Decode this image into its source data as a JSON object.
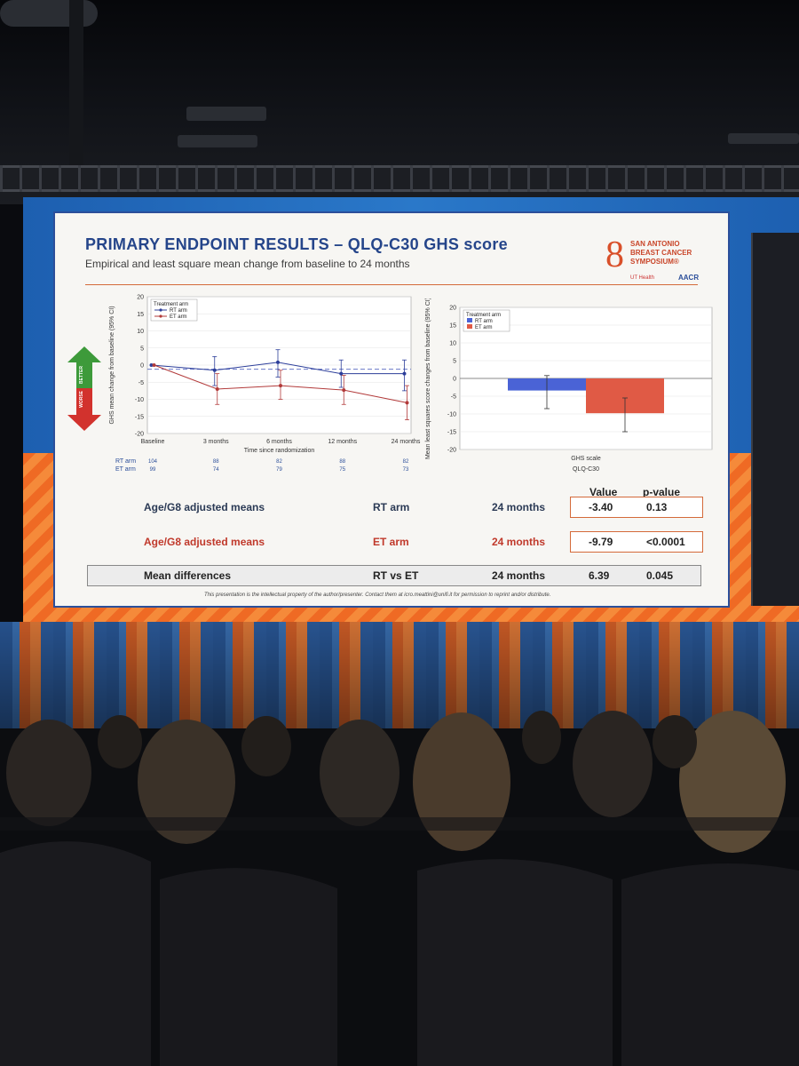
{
  "slide": {
    "title": "PRIMARY ENDPOINT RESULTS – QLQ-C30 GHS score",
    "subtitle": "Empirical and least square mean change from baseline to 24 months",
    "logo_lines": [
      "SAN ANTONIO",
      "BREAST CANCER",
      "SYMPOSIUM®"
    ],
    "logo_ut": "UT Health",
    "logo_aacr": "AACR",
    "arrow_better": "BETTER",
    "arrow_worse": "WORSE",
    "footer": "This presentation is the intellectual property of the author/presenter. Contact them at icro.meattini@unifi.it for permission to reprint and/or distribute."
  },
  "table": {
    "header_value": "Value",
    "header_p": "p-value",
    "rows": [
      {
        "label": "Age/G8 adjusted means",
        "arm": "RT arm",
        "time": "24 months",
        "value": "-3.40",
        "p": "0.13",
        "color": "#2b3a55"
      },
      {
        "label": "Age/G8 adjusted means",
        "arm": "ET arm",
        "time": "24 months",
        "value": "-9.79",
        "p": "<0.0001",
        "color": "#c0392b"
      },
      {
        "label": "Mean differences",
        "arm": "RT vs ET",
        "time": "24 months",
        "value": "6.39",
        "p": "0.045",
        "color": "#222222"
      }
    ]
  },
  "chart_data": [
    {
      "type": "line",
      "ylabel": "GHS mean change from baseline (95% CI)",
      "xlabel": "Time since randomization",
      "ylim": [
        -20,
        20
      ],
      "yticks": [
        20,
        15,
        10,
        5,
        0,
        -5,
        -10,
        -15,
        -20
      ],
      "categories": [
        "Baseline",
        "3 months",
        "6 months",
        "12 months",
        "24 months"
      ],
      "legend_title": "Treatment arm",
      "legend_position": "top-left",
      "series": [
        {
          "name": "RT arm",
          "color": "#2c3e9a",
          "values": [
            0,
            -1.5,
            0.8,
            -2.5,
            -2.5
          ],
          "ci_low": [
            0,
            -6,
            -3.5,
            -6.5,
            -7.5
          ],
          "ci_high": [
            0,
            2.5,
            4.5,
            1.5,
            1.5
          ]
        },
        {
          "name": "ET arm",
          "color": "#b23a3a",
          "values": [
            0,
            -7,
            -6,
            -7.3,
            -11
          ],
          "ci_low": [
            0,
            -11.5,
            -10,
            -11.5,
            -16
          ],
          "ci_high": [
            0,
            -2.5,
            -1.5,
            -3,
            -6
          ]
        }
      ],
      "reference_line": -1.2,
      "at_risk": [
        {
          "label": "RT arm",
          "counts": [
            "104",
            "88",
            "82",
            "88",
            "82"
          ]
        },
        {
          "label": "ET arm",
          "counts": [
            "99",
            "74",
            "79",
            "75",
            "73"
          ]
        }
      ]
    },
    {
      "type": "bar",
      "ylabel": "Mean least squares score changes from baseline (95% CI)",
      "xlabel": "QLQ-C30",
      "categories": [
        "GHS scale"
      ],
      "ylim": [
        -20,
        20
      ],
      "yticks": [
        20,
        15,
        10,
        5,
        0,
        -5,
        -10,
        -15,
        -20
      ],
      "legend_title": "Treatment arm",
      "legend_position": "top-left",
      "series": [
        {
          "name": "RT arm",
          "color": "#4a63d6",
          "values": [
            -3.4
          ],
          "ci_low": [
            -8.5
          ],
          "ci_high": [
            0.8
          ]
        },
        {
          "name": "ET arm",
          "color": "#e05a45",
          "values": [
            -9.79
          ],
          "ci_low": [
            -15
          ],
          "ci_high": [
            -5.5
          ]
        }
      ]
    }
  ]
}
